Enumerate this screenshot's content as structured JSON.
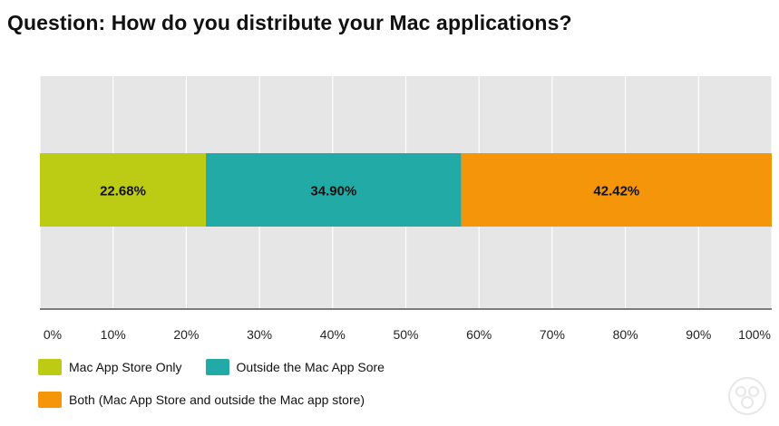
{
  "chart_data": {
    "type": "bar",
    "orientation": "horizontal",
    "stacked": true,
    "title": "Question: How do you distribute your Mac applications?",
    "xlim": [
      0,
      100
    ],
    "xticks": [
      "0%",
      "10%",
      "20%",
      "30%",
      "40%",
      "50%",
      "60%",
      "70%",
      "80%",
      "90%",
      "100%"
    ],
    "grid": true,
    "legend_position": "bottom",
    "series": [
      {
        "name": "Mac App Store Only",
        "value": 22.68,
        "label": "22.68%",
        "color": "#bccc14"
      },
      {
        "name": "Outside the Mac App Sore",
        "value": 34.9,
        "label": "34.90%",
        "color": "#22aaa6"
      },
      {
        "name": "Both (Mac App Store and outside the Mac app store)",
        "value": 42.42,
        "label": "42.42%",
        "color": "#f5960a"
      }
    ]
  }
}
